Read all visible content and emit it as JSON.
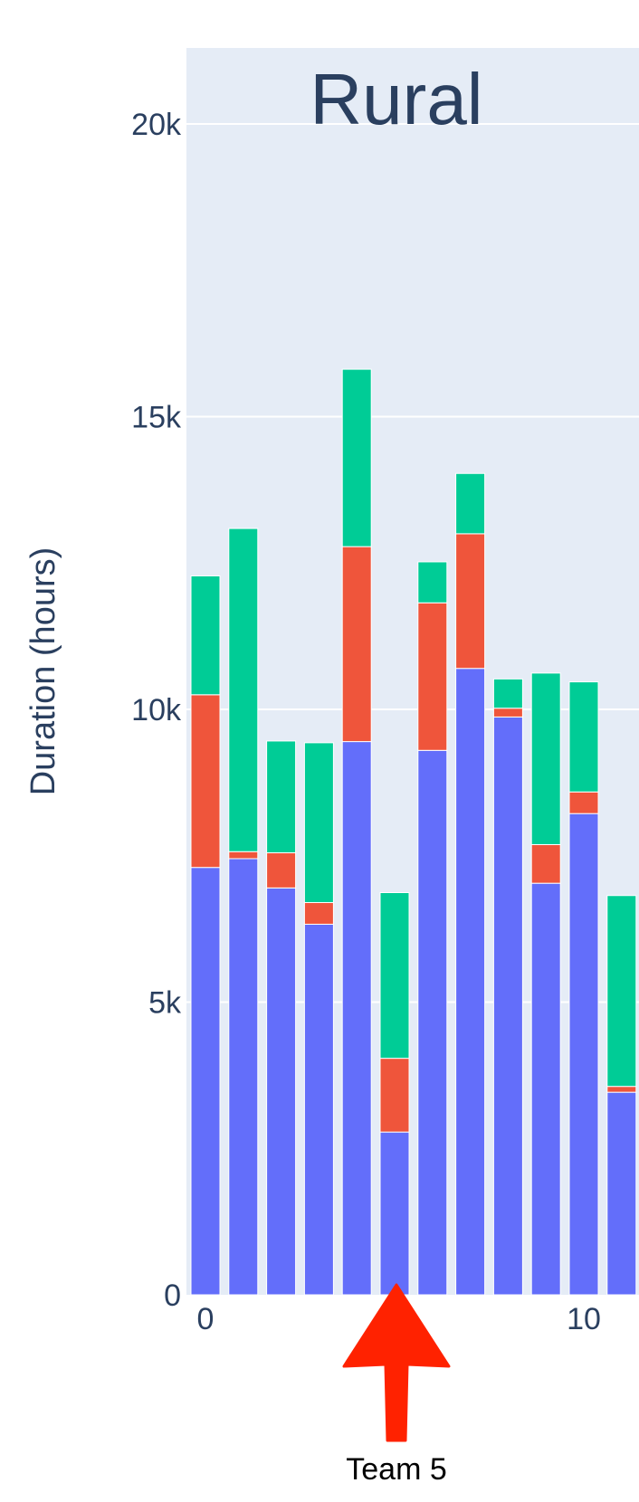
{
  "chart_data": {
    "type": "bar",
    "barmode": "stack",
    "title": "Rural",
    "ylabel": "Duration (hours)",
    "xlabel": "",
    "x": [
      0,
      1,
      2,
      3,
      4,
      5,
      6,
      7,
      8,
      9,
      10,
      11
    ],
    "x_ticks": [
      0,
      10
    ],
    "y_ticks": [
      0,
      5000,
      10000,
      15000,
      20000
    ],
    "y_tick_labels": [
      "0",
      "5k",
      "10k",
      "15k",
      "20k"
    ],
    "ylim": [
      0,
      21300
    ],
    "grid": true,
    "series": [
      {
        "color": "#636efa",
        "values": [
          7300,
          7450,
          6950,
          6330,
          9450,
          2780,
          9300,
          10700,
          9870,
          7030,
          8220,
          3460
        ]
      },
      {
        "color": "#ef553b",
        "values": [
          2950,
          120,
          600,
          370,
          3330,
          1260,
          2520,
          2300,
          150,
          660,
          370,
          100
        ]
      },
      {
        "color": "#00cc96",
        "values": [
          2030,
          5520,
          1910,
          2730,
          3030,
          2830,
          700,
          1030,
          500,
          2930,
          1880,
          3260
        ]
      }
    ],
    "annotations": [
      {
        "text": "Team 5",
        "x": 5,
        "color": "#ff2200",
        "shape": "arrow-up"
      }
    ]
  }
}
